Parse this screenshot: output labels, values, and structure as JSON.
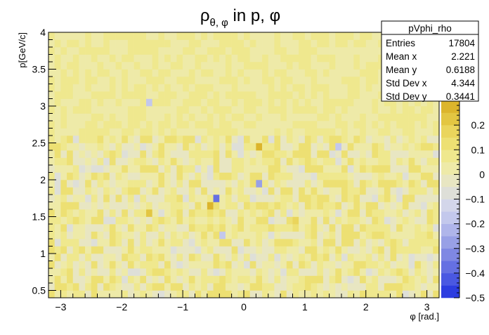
{
  "chart_data": {
    "type": "heatmap",
    "title": {
      "main": "ρ",
      "sub": "θ, φ",
      "rest": " in p, φ"
    },
    "xlabel": "φ [rad.]",
    "ylabel": "p[GeV/c]",
    "xlim": [
      -3.2,
      3.2
    ],
    "ylim": [
      0.4,
      4.0
    ],
    "x_ticks": [
      -3,
      -2,
      -1,
      0,
      1,
      2,
      3
    ],
    "x_tick_labels": [
      "−3",
      "−2",
      "−1",
      "0",
      "1",
      "2",
      "3"
    ],
    "y_ticks": [
      0.5,
      1,
      1.5,
      2,
      2.5,
      3,
      3.5,
      4
    ],
    "y_tick_labels": [
      "0.5",
      "1",
      "1.5",
      "2",
      "2.5",
      "3",
      "3.5",
      "4"
    ],
    "bins": {
      "nx": 64,
      "ny": 36
    },
    "z_range": [
      -0.5,
      0.3
    ],
    "z_ticks": [
      -0.5,
      -0.4,
      -0.3,
      -0.2,
      -0.1,
      0,
      0.1,
      0.2
    ],
    "z_tick_labels": [
      "−0.5",
      "−0.4",
      "−0.3",
      "−0.2",
      "−0.1",
      "0",
      "0.1",
      "0.2"
    ],
    "palette": [
      "#2d3de0",
      "#4a58e2",
      "#6570e2",
      "#7f88e3",
      "#98a0e6",
      "#afb5ea",
      "#c3c8ec",
      "#d3d6ea",
      "#dedfd8",
      "#e8e6c2",
      "#eeeaa8",
      "#efe88e",
      "#ede073",
      "#ead55c",
      "#e3c642",
      "#dcb52c"
    ],
    "anomalies": [
      {
        "x": 0.2,
        "y": 2.45,
        "value": 0.27
      },
      {
        "x": -0.55,
        "y": 1.6,
        "value": 0.26
      },
      {
        "x": 0.2,
        "y": 1.95,
        "value": -0.3
      },
      {
        "x": -0.45,
        "y": 1.73,
        "value": -0.38
      },
      {
        "x": -1.55,
        "y": 1.55,
        "value": 0.22
      },
      {
        "x": 0.85,
        "y": 1.45,
        "value": 0.2
      },
      {
        "x": -1.55,
        "y": 3.05,
        "value": -0.18
      },
      {
        "x": 1.55,
        "y": 2.45,
        "value": -0.17
      },
      {
        "x": -0.35,
        "y": 1.25,
        "value": -0.19
      }
    ],
    "stats": {
      "name": "pVphi_rho",
      "rows": [
        {
          "label": "Entries",
          "value": "17804"
        },
        {
          "label": "Mean x",
          "value": "2.221"
        },
        {
          "label": "Mean y",
          "value": "0.6188"
        },
        {
          "label": "Std Dev x",
          "value": "4.344"
        },
        {
          "label": "Std Dev y",
          "value": "0.3441"
        }
      ]
    }
  }
}
